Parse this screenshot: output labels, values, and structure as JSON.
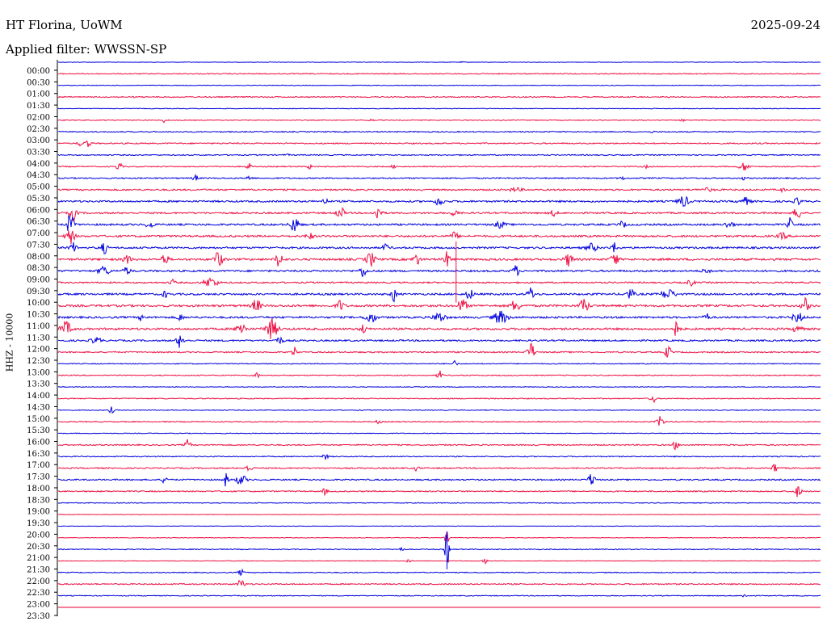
{
  "header": {
    "station": "HT Florina, UoWM",
    "date": "2025-09-24",
    "filter": "Applied filter: WWSSN-SP"
  },
  "chart_data": {
    "type": "line",
    "ylabel": "HHZ - 10000",
    "colors": [
      "#0000dd",
      "#ee1144"
    ],
    "rows": [
      {
        "label": "00:00",
        "noise": 0.6,
        "events": [
          [
            0.53,
            0.5,
            3
          ]
        ]
      },
      {
        "label": "00:30",
        "noise": 1.2,
        "events": [
          [
            0.34,
            0.8,
            2
          ]
        ]
      },
      {
        "label": "01:00",
        "noise": 0.8,
        "events": []
      },
      {
        "label": "01:30",
        "noise": 1.3,
        "events": [
          [
            0.1,
            0.6,
            2
          ]
        ]
      },
      {
        "label": "02:00",
        "noise": 0.8,
        "events": []
      },
      {
        "label": "02:30",
        "noise": 1.0,
        "events": [
          [
            0.14,
            4,
            2
          ],
          [
            0.41,
            1.5,
            3
          ],
          [
            0.82,
            1.5,
            3
          ]
        ]
      },
      {
        "label": "03:00",
        "noise": 1.3,
        "events": [
          [
            0.78,
            1,
            3
          ]
        ]
      },
      {
        "label": "03:30",
        "noise": 1.5,
        "events": [
          [
            0.03,
            3,
            4
          ],
          [
            0.04,
            5,
            3
          ]
        ]
      },
      {
        "label": "04:00",
        "noise": 1.3,
        "events": [
          [
            0.3,
            1,
            3
          ]
        ]
      },
      {
        "label": "04:30",
        "noise": 1.3,
        "events": [
          [
            0.08,
            6,
            3
          ],
          [
            0.25,
            4,
            3
          ],
          [
            0.33,
            3,
            3
          ],
          [
            0.44,
            2,
            3
          ],
          [
            0.77,
            2,
            3
          ],
          [
            0.9,
            5,
            6
          ]
        ]
      },
      {
        "label": "05:00",
        "noise": 1.5,
        "events": [
          [
            0.18,
            4,
            3
          ],
          [
            0.25,
            3,
            3
          ],
          [
            0.74,
            2,
            3
          ],
          [
            0.9,
            2,
            3
          ]
        ]
      },
      {
        "label": "05:30",
        "noise": 1.9,
        "events": [
          [
            0.6,
            2,
            8
          ],
          [
            0.85,
            2,
            8
          ],
          [
            0.95,
            2,
            3
          ]
        ]
      },
      {
        "label": "06:00",
        "noise": 2.2,
        "events": [
          [
            0.35,
            4,
            3
          ],
          [
            0.5,
            7,
            4
          ],
          [
            0.82,
            7,
            6
          ],
          [
            0.9,
            5,
            6
          ],
          [
            0.97,
            4,
            4
          ]
        ]
      },
      {
        "label": "06:30",
        "noise": 2.0,
        "events": [
          [
            0.02,
            9,
            4
          ],
          [
            0.37,
            9,
            4
          ],
          [
            0.42,
            9,
            4
          ],
          [
            0.52,
            7,
            3
          ],
          [
            0.65,
            4,
            4
          ],
          [
            0.97,
            9,
            4
          ]
        ]
      },
      {
        "label": "07:00",
        "noise": 2.2,
        "events": [
          [
            0.016,
            15,
            4
          ],
          [
            0.12,
            5,
            4
          ],
          [
            0.31,
            10,
            5
          ],
          [
            0.58,
            4,
            6
          ],
          [
            0.74,
            4,
            4
          ],
          [
            0.88,
            4,
            5
          ],
          [
            0.96,
            8,
            3
          ]
        ]
      },
      {
        "label": "07:30",
        "noise": 2.3,
        "events": [
          [
            0.016,
            9,
            5
          ],
          [
            0.33,
            4,
            4
          ],
          [
            0.52,
            5,
            4
          ],
          [
            0.95,
            4,
            5
          ]
        ]
      },
      {
        "label": "08:00",
        "noise": 2.3,
        "events": [
          [
            0.02,
            6,
            4
          ],
          [
            0.06,
            7,
            4
          ],
          [
            0.43,
            4,
            4
          ],
          [
            0.7,
            5,
            6
          ],
          [
            0.73,
            6,
            4
          ]
        ]
      },
      {
        "label": "08:30",
        "noise": 2.5,
        "events": [
          [
            0.09,
            7,
            4
          ],
          [
            0.14,
            7,
            4
          ],
          [
            0.21,
            10,
            5
          ],
          [
            0.29,
            10,
            4
          ],
          [
            0.41,
            9,
            5
          ],
          [
            0.47,
            7,
            4
          ],
          [
            0.51,
            9,
            4
          ],
          [
            0.67,
            8,
            5
          ],
          [
            0.73,
            10,
            4
          ]
        ]
      },
      {
        "label": "09:00",
        "noise": 2.2,
        "events": [
          [
            0.06,
            6,
            6
          ],
          [
            0.09,
            5,
            4
          ],
          [
            0.4,
            7,
            4
          ],
          [
            0.6,
            7,
            4
          ],
          [
            0.85,
            4,
            4
          ]
        ]
      },
      {
        "label": "09:30",
        "noise": 1.8,
        "events": [
          [
            0.15,
            4,
            3
          ],
          [
            0.2,
            6,
            8
          ],
          [
            0.83,
            4,
            4
          ]
        ]
      },
      {
        "label": "10:00",
        "noise": 2.3,
        "events": [
          [
            0.14,
            4,
            3
          ],
          [
            0.44,
            9,
            3
          ],
          [
            0.54,
            7,
            4
          ],
          [
            0.62,
            8,
            4
          ],
          [
            0.75,
            6,
            5
          ],
          [
            0.8,
            6,
            8
          ]
        ]
      },
      {
        "label": "10:30",
        "noise": 2.6,
        "events": [
          [
            0.26,
            8,
            5
          ],
          [
            0.37,
            7,
            4
          ],
          [
            0.53,
            9,
            5
          ],
          [
            0.6,
            8,
            5
          ],
          [
            0.69,
            9,
            5
          ],
          [
            0.98,
            9,
            4
          ]
        ]
      },
      {
        "label": "11:00",
        "noise": 2.3,
        "events": [
          [
            0.11,
            5,
            3
          ],
          [
            0.16,
            5,
            3
          ],
          [
            0.41,
            7,
            6
          ],
          [
            0.5,
            6,
            7
          ],
          [
            0.58,
            8,
            8
          ],
          [
            0.85,
            6,
            3
          ],
          [
            0.97,
            6,
            6
          ]
        ]
      },
      {
        "label": "11:30",
        "noise": 2.5,
        "events": [
          [
            0.01,
            9,
            6
          ],
          [
            0.24,
            9,
            5
          ],
          [
            0.28,
            12,
            7
          ],
          [
            0.4,
            7,
            3
          ],
          [
            0.81,
            9,
            4
          ],
          [
            0.97,
            8,
            4
          ]
        ]
      },
      {
        "label": "12:00",
        "noise": 2.0,
        "events": [
          [
            0.05,
            4,
            6
          ],
          [
            0.16,
            9,
            4
          ],
          [
            0.29,
            5,
            4
          ]
        ]
      },
      {
        "label": "12:30",
        "noise": 1.7,
        "events": [
          [
            0.31,
            6,
            3
          ],
          [
            0.62,
            12,
            4
          ],
          [
            0.8,
            10,
            3
          ]
        ]
      },
      {
        "label": "13:00",
        "noise": 1.1,
        "events": [
          [
            0.52,
            4,
            3
          ]
        ]
      },
      {
        "label": "13:30",
        "noise": 1.2,
        "events": [
          [
            0.26,
            4,
            3
          ],
          [
            0.5,
            6,
            3
          ]
        ]
      },
      {
        "label": "14:00",
        "noise": 0.8,
        "events": []
      },
      {
        "label": "14:30",
        "noise": 1.2,
        "events": [
          [
            0.78,
            6,
            3
          ]
        ]
      },
      {
        "label": "15:00",
        "noise": 1.0,
        "events": [
          [
            0.07,
            4,
            3
          ]
        ]
      },
      {
        "label": "15:30",
        "noise": 1.2,
        "events": [
          [
            0.42,
            2,
            3
          ],
          [
            0.79,
            7,
            4
          ]
        ]
      },
      {
        "label": "16:00",
        "noise": 0.9,
        "events": []
      },
      {
        "label": "16:30",
        "noise": 1.5,
        "events": [
          [
            0.17,
            7,
            3
          ],
          [
            0.81,
            6,
            3
          ]
        ]
      },
      {
        "label": "17:00",
        "noise": 1.2,
        "events": [
          [
            0.35,
            5,
            3
          ]
        ]
      },
      {
        "label": "17:30",
        "noise": 1.5,
        "events": [
          [
            0.25,
            4,
            4
          ],
          [
            0.47,
            3,
            3
          ],
          [
            0.94,
            7,
            3
          ]
        ]
      },
      {
        "label": "18:00",
        "noise": 1.7,
        "events": [
          [
            0.14,
            5,
            3
          ],
          [
            0.22,
            8,
            3
          ],
          [
            0.24,
            6,
            6
          ],
          [
            0.7,
            8,
            4
          ]
        ]
      },
      {
        "label": "18:30",
        "noise": 1.5,
        "events": [
          [
            0.35,
            4,
            3
          ],
          [
            0.97,
            7,
            4
          ]
        ]
      },
      {
        "label": "19:00",
        "noise": 1.0,
        "events": []
      },
      {
        "label": "19:30",
        "noise": 0.6,
        "events": []
      },
      {
        "label": "20:00",
        "noise": 0.6,
        "events": []
      },
      {
        "label": "20:30",
        "noise": 0.8,
        "events": [
          [
            0.51,
            6,
            3
          ]
        ]
      },
      {
        "label": "21:00",
        "noise": 1.1,
        "events": [
          [
            0.51,
            30,
            2
          ],
          [
            0.45,
            3,
            3
          ]
        ]
      },
      {
        "label": "21:30",
        "noise": 0.7,
        "events": [
          [
            0.56,
            3,
            3
          ],
          [
            0.46,
            2,
            3
          ]
        ]
      },
      {
        "label": "22:00",
        "noise": 1.1,
        "events": [
          [
            0.24,
            4,
            3
          ]
        ]
      },
      {
        "label": "22:30",
        "noise": 1.5,
        "events": [
          [
            0.24,
            6,
            4
          ]
        ]
      },
      {
        "label": "23:00",
        "noise": 1.0,
        "events": [
          [
            0.9,
            2,
            3
          ]
        ]
      },
      {
        "label": "23:30",
        "noise": 0.0,
        "events": []
      }
    ]
  }
}
